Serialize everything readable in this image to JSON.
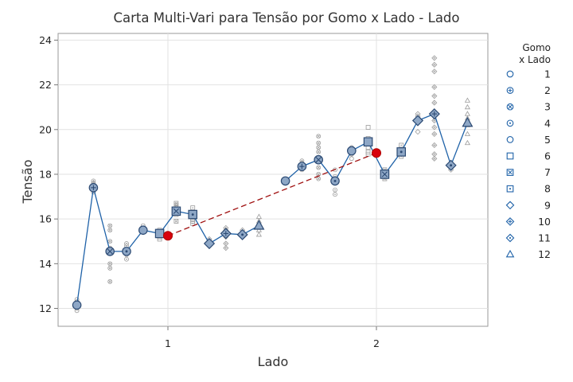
{
  "chart_data": {
    "type": "multi-vari",
    "title": "Carta Multi-Vari para Tensão por Gomo x Lado - Lado",
    "xlabel": "Lado",
    "ylabel": "Tensão",
    "x_categories": [
      "1",
      "2"
    ],
    "ylim": [
      11.2,
      24.3
    ],
    "y_ticks": [
      12,
      14,
      16,
      18,
      20,
      22,
      24
    ],
    "grid": true,
    "legend_title": [
      "Gomo",
      "x Lado"
    ],
    "legend_placement": "right",
    "gomo_labels": [
      "1",
      "2",
      "3",
      "4",
      "5",
      "6",
      "7",
      "8",
      "9",
      "10",
      "11",
      "12"
    ],
    "gomo_symbols": [
      "circle",
      "circle-plus",
      "circle-x",
      "circle-dot",
      "circle",
      "square",
      "square-x",
      "square-dot",
      "diamond",
      "diamond-plus",
      "diamond-dot",
      "triangle"
    ],
    "lado_means": [
      15.25,
      18.95
    ],
    "series": [
      {
        "name": "1",
        "gomo_means": [
          12.15,
          17.4,
          14.55,
          14.55,
          15.5,
          15.35,
          16.35,
          16.2,
          14.9,
          15.35,
          15.3,
          15.7
        ]
      },
      {
        "name": "2",
        "gomo_means": [
          17.7,
          18.35,
          18.65,
          17.7,
          19.05,
          19.45,
          18.0,
          19.0,
          20.4,
          20.7,
          18.4,
          20.3
        ]
      }
    ],
    "raw_points": [
      [
        [
          12.2,
          12.0,
          11.9,
          12.3,
          12.4,
          12.1
        ],
        [
          17.7,
          17.5,
          17.3,
          17.2,
          17.6
        ],
        [
          15.7,
          15.5,
          15.0,
          14.5,
          14.0,
          13.8,
          13.2,
          14.7
        ],
        [
          14.8,
          14.6,
          14.4,
          14.2,
          14.9
        ],
        [
          15.6,
          15.5,
          15.4,
          15.7
        ],
        [
          15.2,
          15.5,
          15.3,
          15.4,
          15.1
        ],
        [
          16.7,
          16.5,
          16.3,
          16.2,
          16.6,
          15.9
        ],
        [
          16.5,
          16.3,
          16.0,
          15.9,
          15.8,
          16.2
        ],
        [
          15.0,
          14.8,
          14.9,
          15.1
        ],
        [
          15.2,
          14.9,
          14.7,
          15.5,
          15.6
        ],
        [
          15.3,
          15.4,
          15.2,
          15.5
        ],
        [
          16.1,
          15.9,
          15.7,
          15.5,
          15.3
        ]
      ],
      [
        [
          17.8,
          17.6,
          17.7
        ],
        [
          18.6,
          18.2,
          18.5,
          18.4
        ],
        [
          19.7,
          19.4,
          19.0,
          18.7,
          18.3,
          18.0,
          17.8,
          19.2
        ],
        [
          18.2,
          17.6,
          17.1,
          17.3,
          17.9
        ],
        [
          19.2,
          18.9,
          19.0,
          18.7
        ],
        [
          20.1,
          19.6,
          19.4,
          19.2,
          19.0,
          18.9
        ],
        [
          18.1,
          17.9,
          17.8,
          18.2
        ],
        [
          19.3,
          19.0,
          18.8,
          19.1
        ],
        [
          20.7,
          20.5,
          20.3,
          19.9,
          20.6
        ],
        [
          23.2,
          22.9,
          22.6,
          21.9,
          21.5,
          21.2,
          20.8,
          20.4,
          20.1,
          19.8,
          19.3,
          18.9,
          18.7,
          20.6
        ],
        [
          18.5,
          18.3,
          18.2,
          18.4
        ],
        [
          21.3,
          21.0,
          20.7,
          20.5,
          20.2,
          19.8,
          19.4
        ]
      ]
    ]
  }
}
